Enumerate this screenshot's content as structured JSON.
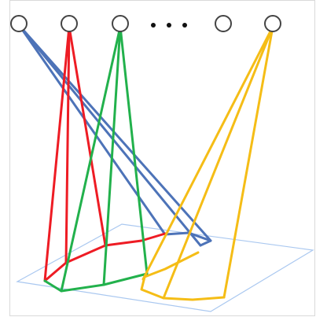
{
  "diagram": {
    "nodes": [
      {
        "id": "node-1"
      },
      {
        "id": "node-2"
      },
      {
        "id": "node-3"
      },
      {
        "id": "node-4"
      },
      {
        "id": "node-5"
      }
    ],
    "ellipsis": "• • •",
    "colors": {
      "node_stroke": "#444444",
      "plane": "#aac8f0",
      "blue": "#4d73b8",
      "red": "#ee1c24",
      "green": "#22b14c",
      "yellow": "#f5bd16"
    }
  }
}
